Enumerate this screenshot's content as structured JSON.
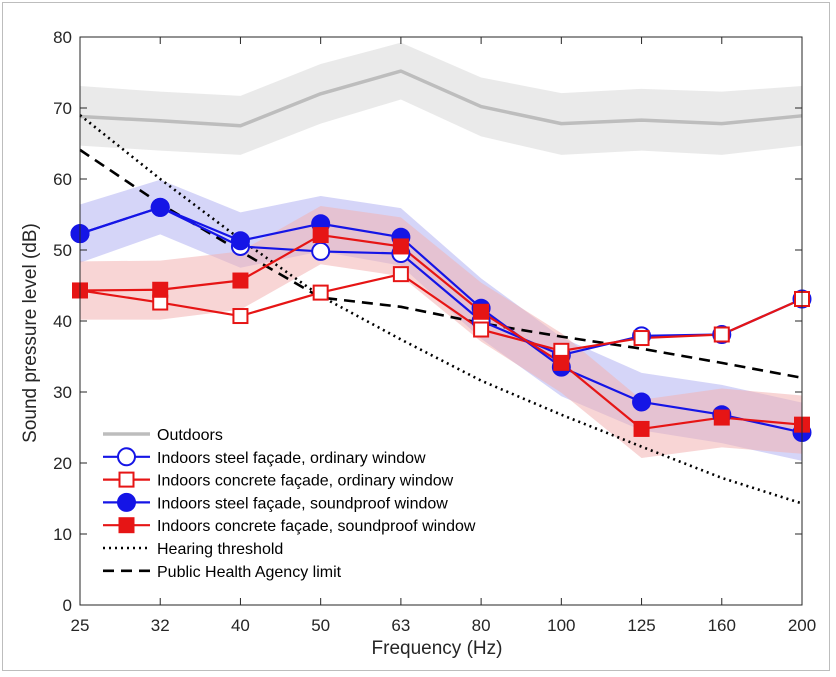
{
  "chart_data": {
    "type": "line",
    "title": "",
    "xlabel": "Frequency (Hz)",
    "ylabel": "Sound pressure level (dB)",
    "categories": [
      "25",
      "32",
      "40",
      "50",
      "63",
      "80",
      "100",
      "125",
      "160",
      "200"
    ],
    "ylim": [
      0,
      80
    ],
    "yticks": [
      "0",
      "10",
      "20",
      "30",
      "40",
      "50",
      "60",
      "70",
      "80"
    ],
    "grid": false,
    "legend_position": "bottom-left",
    "series": [
      {
        "name": "Outdoors",
        "color": "#bdbdbd",
        "band_color": "#e6e6e6",
        "marker": "none",
        "style": "solid-thick",
        "values": [
          68.8,
          68.2,
          67.5,
          72.0,
          75.2,
          70.2,
          67.8,
          68.3,
          67.8,
          68.9
        ],
        "band_lower": [
          64.7,
          64.0,
          63.4,
          67.8,
          71.2,
          66.0,
          63.4,
          64.0,
          63.4,
          64.7
        ],
        "band_upper": [
          73.1,
          72.3,
          71.7,
          76.2,
          79.2,
          74.3,
          72.1,
          72.7,
          72.3,
          73.1
        ]
      },
      {
        "name": "Indoors steel façade, ordinary window",
        "color": "#1515e6",
        "marker": "circle-open",
        "style": "solid",
        "values": [
          52.3,
          56.0,
          50.5,
          49.8,
          49.5,
          40.0,
          35.2,
          37.9,
          38.1,
          43.1
        ]
      },
      {
        "name": "Indoors concrete façade, ordinary window",
        "color": "#e61515",
        "marker": "square-open",
        "style": "solid",
        "values": [
          44.3,
          42.6,
          40.7,
          44.0,
          46.6,
          38.8,
          35.8,
          37.6,
          38.1,
          43.1
        ]
      },
      {
        "name": "Indoors steel façade, soundproof window",
        "color": "#1515e6",
        "band_color": "#b3b3f2",
        "marker": "circle-filled",
        "style": "solid",
        "values": [
          52.3,
          56.0,
          51.3,
          53.7,
          51.8,
          41.8,
          33.5,
          28.6,
          26.8,
          24.3
        ],
        "band_lower": [
          48.2,
          52.2,
          47.5,
          49.8,
          47.8,
          37.5,
          29.4,
          24.6,
          22.8,
          20.3
        ],
        "band_upper": [
          56.4,
          59.9,
          55.3,
          57.6,
          55.9,
          46.0,
          37.7,
          32.7,
          31.0,
          28.5
        ]
      },
      {
        "name": "Indoors concrete façade, soundproof window",
        "color": "#e61515",
        "band_color": "#f2b3b3",
        "marker": "square-filled",
        "style": "solid",
        "values": [
          44.3,
          44.4,
          45.7,
          52.1,
          50.5,
          41.3,
          34.1,
          24.8,
          26.4,
          25.4
        ],
        "band_lower": [
          40.2,
          40.2,
          41.6,
          48.0,
          46.3,
          37.1,
          29.9,
          20.7,
          22.2,
          21.3
        ],
        "band_upper": [
          48.4,
          48.5,
          49.8,
          56.2,
          54.6,
          45.4,
          38.3,
          28.9,
          30.5,
          29.5
        ]
      },
      {
        "name": "Hearing threshold",
        "color": "#000000",
        "marker": "none",
        "style": "dotted",
        "values": [
          69.0,
          60.0,
          51.5,
          43.5,
          37.4,
          31.6,
          26.8,
          22.3,
          17.9,
          14.3
        ]
      },
      {
        "name": "Public Health Agency limit",
        "color": "#000000",
        "marker": "none",
        "style": "dashed",
        "values": [
          64.1,
          56.5,
          49.8,
          43.3,
          42.0,
          39.7,
          37.8,
          36.1,
          34.1,
          32.0
        ]
      }
    ]
  }
}
